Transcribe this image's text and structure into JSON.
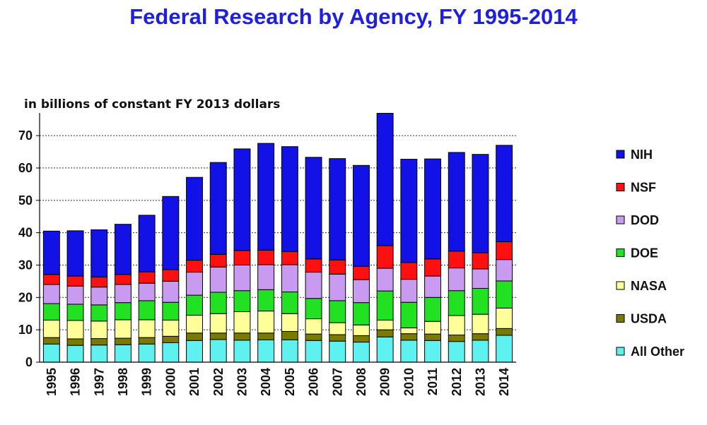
{
  "chart_data": {
    "type": "bar",
    "stacked": true,
    "title": "Federal Research by Agency, FY 1995-2014",
    "subtitle": "in billions of constant FY 2013 dollars",
    "categories": [
      "1995",
      "1996",
      "1997",
      "1998",
      "1999",
      "2000",
      "2001",
      "2002",
      "2003",
      "2004",
      "2005",
      "2006",
      "2007",
      "2008",
      "2009",
      "2010",
      "2011",
      "2012",
      "2013",
      "2014"
    ],
    "ylim": [
      0,
      77
    ],
    "yticks": [
      0,
      10,
      20,
      30,
      40,
      50,
      60,
      70
    ],
    "grid": "dotted horizontal",
    "legend_position": "right",
    "series": [
      {
        "name": "All Other",
        "color": "#5ff0f0",
        "values": [
          5.6,
          5.2,
          5.3,
          5.4,
          5.6,
          6.0,
          6.7,
          7.0,
          6.8,
          6.9,
          6.9,
          6.7,
          6.5,
          6.2,
          7.8,
          6.8,
          6.7,
          6.4,
          6.8,
          8.3
        ]
      },
      {
        "name": "USDA",
        "color": "#7a7a00",
        "values": [
          2.0,
          2.0,
          2.0,
          2.0,
          2.0,
          2.0,
          2.3,
          2.0,
          2.2,
          2.1,
          2.6,
          2.0,
          2.0,
          2.0,
          2.2,
          2.0,
          2.0,
          2.0,
          2.0,
          2.1
        ]
      },
      {
        "name": "NASA",
        "color": "#ffff99",
        "values": [
          5.4,
          5.7,
          5.4,
          5.7,
          5.5,
          5.0,
          5.5,
          6.0,
          6.6,
          6.8,
          5.5,
          4.7,
          3.7,
          3.3,
          3.0,
          1.8,
          3.9,
          6.0,
          6.0,
          6.3
        ]
      },
      {
        "name": "DOE",
        "color": "#22e022",
        "values": [
          5.1,
          5.0,
          5.0,
          5.3,
          5.9,
          5.5,
          6.2,
          6.6,
          6.5,
          6.6,
          6.7,
          6.3,
          6.8,
          6.9,
          9.0,
          7.9,
          7.4,
          7.7,
          8.0,
          8.4
        ]
      },
      {
        "name": "DOD",
        "color": "#c89bf0",
        "values": [
          5.9,
          5.6,
          5.5,
          5.6,
          5.4,
          6.5,
          7.1,
          7.8,
          7.9,
          7.7,
          8.4,
          8.1,
          8.2,
          7.1,
          7.0,
          7.1,
          6.6,
          7.0,
          6.0,
          6.6
        ]
      },
      {
        "name": "NSF",
        "color": "#ff1010",
        "values": [
          3.1,
          3.1,
          3.1,
          3.1,
          3.5,
          3.6,
          3.7,
          3.9,
          4.5,
          4.5,
          4.1,
          4.1,
          4.4,
          4.1,
          7.0,
          5.2,
          5.3,
          5.2,
          5.0,
          5.5
        ]
      },
      {
        "name": "NIH",
        "color": "#1212e6",
        "values": [
          13.4,
          14.0,
          14.6,
          15.5,
          17.5,
          22.6,
          25.6,
          28.4,
          31.4,
          33.0,
          32.4,
          31.4,
          31.3,
          31.2,
          40.9,
          31.9,
          30.9,
          30.5,
          30.4,
          29.8
        ]
      }
    ],
    "legend_order": [
      "NIH",
      "NSF",
      "DOD",
      "DOE",
      "NASA",
      "USDA",
      "All Other"
    ]
  }
}
